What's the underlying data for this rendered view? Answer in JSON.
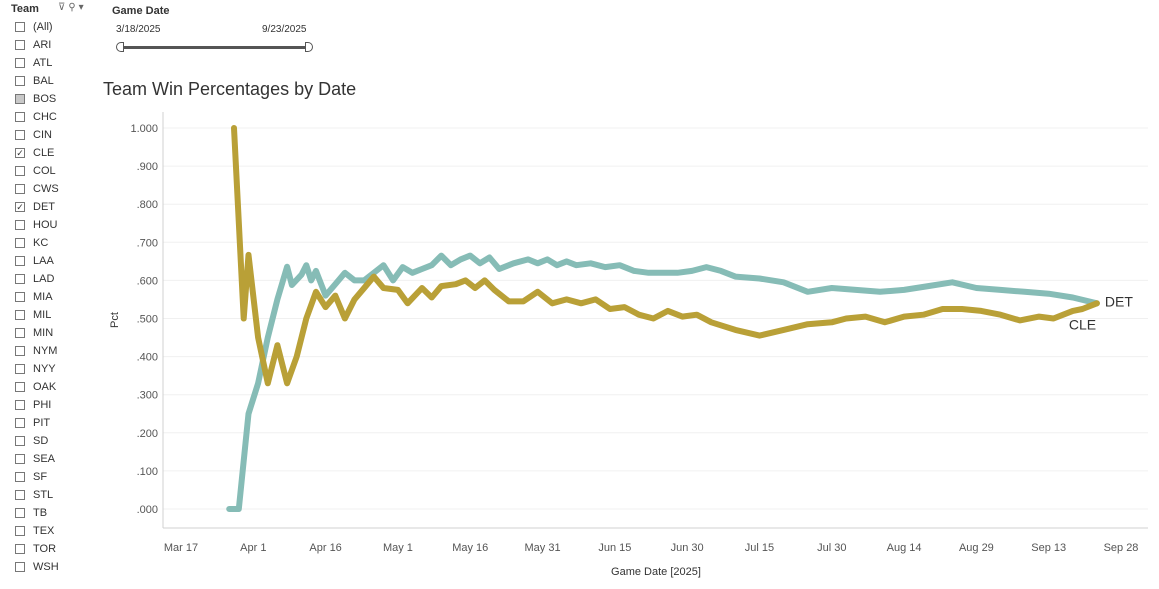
{
  "filter": {
    "title": "Team",
    "items": [
      {
        "label": "(All)",
        "state": "unchecked"
      },
      {
        "label": "ARI",
        "state": "unchecked"
      },
      {
        "label": "ATL",
        "state": "unchecked"
      },
      {
        "label": "BAL",
        "state": "unchecked"
      },
      {
        "label": "BOS",
        "state": "partial"
      },
      {
        "label": "CHC",
        "state": "unchecked"
      },
      {
        "label": "CIN",
        "state": "unchecked"
      },
      {
        "label": "CLE",
        "state": "checked"
      },
      {
        "label": "COL",
        "state": "unchecked"
      },
      {
        "label": "CWS",
        "state": "unchecked"
      },
      {
        "label": "DET",
        "state": "checked"
      },
      {
        "label": "HOU",
        "state": "unchecked"
      },
      {
        "label": "KC",
        "state": "unchecked"
      },
      {
        "label": "LAA",
        "state": "unchecked"
      },
      {
        "label": "LAD",
        "state": "unchecked"
      },
      {
        "label": "MIA",
        "state": "unchecked"
      },
      {
        "label": "MIL",
        "state": "unchecked"
      },
      {
        "label": "MIN",
        "state": "unchecked"
      },
      {
        "label": "NYM",
        "state": "unchecked"
      },
      {
        "label": "NYY",
        "state": "unchecked"
      },
      {
        "label": "OAK",
        "state": "unchecked"
      },
      {
        "label": "PHI",
        "state": "unchecked"
      },
      {
        "label": "PIT",
        "state": "unchecked"
      },
      {
        "label": "SD",
        "state": "unchecked"
      },
      {
        "label": "SEA",
        "state": "unchecked"
      },
      {
        "label": "SF",
        "state": "unchecked"
      },
      {
        "label": "STL",
        "state": "unchecked"
      },
      {
        "label": "TB",
        "state": "unchecked"
      },
      {
        "label": "TEX",
        "state": "unchecked"
      },
      {
        "label": "TOR",
        "state": "unchecked"
      },
      {
        "label": "WSH",
        "state": "unchecked"
      }
    ]
  },
  "date_filter": {
    "title": "Game Date",
    "start": "3/18/2025",
    "end": "9/23/2025"
  },
  "chart_data": {
    "type": "line",
    "title": "Team Win Percentages by Date",
    "xlabel": "Game Date [2025]",
    "ylabel": "Pct",
    "xlim": [
      "2025-03-14",
      "2025-09-30"
    ],
    "ylim": [
      0,
      1.05
    ],
    "x_ticks": [
      {
        "date": "2025-03-17",
        "label": "Mar 17"
      },
      {
        "date": "2025-04-01",
        "label": "Apr 1"
      },
      {
        "date": "2025-04-16",
        "label": "Apr 16"
      },
      {
        "date": "2025-05-01",
        "label": "May 1"
      },
      {
        "date": "2025-05-16",
        "label": "May 16"
      },
      {
        "date": "2025-05-31",
        "label": "May 31"
      },
      {
        "date": "2025-06-15",
        "label": "Jun 15"
      },
      {
        "date": "2025-06-30",
        "label": "Jun 30"
      },
      {
        "date": "2025-07-15",
        "label": "Jul 15"
      },
      {
        "date": "2025-07-30",
        "label": "Jul 30"
      },
      {
        "date": "2025-08-14",
        "label": "Aug 14"
      },
      {
        "date": "2025-08-29",
        "label": "Aug 29"
      },
      {
        "date": "2025-09-13",
        "label": "Sep 13"
      },
      {
        "date": "2025-09-28",
        "label": "Sep 28"
      }
    ],
    "y_ticks": [
      {
        "value": 0.0,
        "label": ".000"
      },
      {
        "value": 0.1,
        "label": ".100"
      },
      {
        "value": 0.2,
        "label": ".200"
      },
      {
        "value": 0.3,
        "label": ".300"
      },
      {
        "value": 0.4,
        "label": ".400"
      },
      {
        "value": 0.5,
        "label": ".500"
      },
      {
        "value": 0.6,
        "label": ".600"
      },
      {
        "value": 0.7,
        "label": ".700"
      },
      {
        "value": 0.8,
        "label": ".800"
      },
      {
        "value": 0.9,
        "label": ".900"
      },
      {
        "value": 1.0,
        "label": "1.000"
      }
    ],
    "grid": "horizontal",
    "series": [
      {
        "name": "DET",
        "color": "#86bcb6",
        "points": [
          [
            "2025-03-27",
            0.0
          ],
          [
            "2025-03-29",
            0.0
          ],
          [
            "2025-03-31",
            0.25
          ],
          [
            "2025-04-02",
            0.33
          ],
          [
            "2025-04-04",
            0.45
          ],
          [
            "2025-04-06",
            0.55
          ],
          [
            "2025-04-08",
            0.636
          ],
          [
            "2025-04-09",
            0.588
          ],
          [
            "2025-04-11",
            0.615
          ],
          [
            "2025-04-12",
            0.64
          ],
          [
            "2025-04-13",
            0.6
          ],
          [
            "2025-04-14",
            0.625
          ],
          [
            "2025-04-16",
            0.56
          ],
          [
            "2025-04-18",
            0.59
          ],
          [
            "2025-04-20",
            0.62
          ],
          [
            "2025-04-22",
            0.6
          ],
          [
            "2025-04-24",
            0.6
          ],
          [
            "2025-04-26",
            0.62
          ],
          [
            "2025-04-28",
            0.64
          ],
          [
            "2025-04-30",
            0.6
          ],
          [
            "2025-05-02",
            0.635
          ],
          [
            "2025-05-04",
            0.62
          ],
          [
            "2025-05-06",
            0.63
          ],
          [
            "2025-05-08",
            0.64
          ],
          [
            "2025-05-10",
            0.665
          ],
          [
            "2025-05-12",
            0.64
          ],
          [
            "2025-05-14",
            0.655
          ],
          [
            "2025-05-16",
            0.665
          ],
          [
            "2025-05-18",
            0.645
          ],
          [
            "2025-05-20",
            0.66
          ],
          [
            "2025-05-22",
            0.63
          ],
          [
            "2025-05-25",
            0.645
          ],
          [
            "2025-05-28",
            0.655
          ],
          [
            "2025-05-30",
            0.645
          ],
          [
            "2025-06-01",
            0.655
          ],
          [
            "2025-06-03",
            0.64
          ],
          [
            "2025-06-05",
            0.65
          ],
          [
            "2025-06-07",
            0.64
          ],
          [
            "2025-06-10",
            0.645
          ],
          [
            "2025-06-13",
            0.635
          ],
          [
            "2025-06-16",
            0.64
          ],
          [
            "2025-06-19",
            0.625
          ],
          [
            "2025-06-22",
            0.62
          ],
          [
            "2025-06-25",
            0.62
          ],
          [
            "2025-06-28",
            0.62
          ],
          [
            "2025-07-01",
            0.625
          ],
          [
            "2025-07-04",
            0.635
          ],
          [
            "2025-07-07",
            0.625
          ],
          [
            "2025-07-10",
            0.61
          ],
          [
            "2025-07-15",
            0.605
          ],
          [
            "2025-07-20",
            0.595
          ],
          [
            "2025-07-25",
            0.57
          ],
          [
            "2025-07-30",
            0.58
          ],
          [
            "2025-08-04",
            0.575
          ],
          [
            "2025-08-09",
            0.57
          ],
          [
            "2025-08-14",
            0.575
          ],
          [
            "2025-08-19",
            0.585
          ],
          [
            "2025-08-24",
            0.595
          ],
          [
            "2025-08-29",
            0.58
          ],
          [
            "2025-09-03",
            0.575
          ],
          [
            "2025-09-08",
            0.57
          ],
          [
            "2025-09-13",
            0.565
          ],
          [
            "2025-09-18",
            0.555
          ],
          [
            "2025-09-23",
            0.54
          ]
        ]
      },
      {
        "name": "CLE",
        "color": "#b9a037",
        "points": [
          [
            "2025-03-28",
            1.0
          ],
          [
            "2025-03-30",
            0.5
          ],
          [
            "2025-03-31",
            0.667
          ],
          [
            "2025-04-02",
            0.45
          ],
          [
            "2025-04-04",
            0.33
          ],
          [
            "2025-04-06",
            0.43
          ],
          [
            "2025-04-08",
            0.33
          ],
          [
            "2025-04-10",
            0.4
          ],
          [
            "2025-04-12",
            0.5
          ],
          [
            "2025-04-14",
            0.57
          ],
          [
            "2025-04-16",
            0.53
          ],
          [
            "2025-04-18",
            0.56
          ],
          [
            "2025-04-20",
            0.5
          ],
          [
            "2025-04-22",
            0.55
          ],
          [
            "2025-04-24",
            0.58
          ],
          [
            "2025-04-26",
            0.61
          ],
          [
            "2025-04-28",
            0.58
          ],
          [
            "2025-05-01",
            0.575
          ],
          [
            "2025-05-03",
            0.54
          ],
          [
            "2025-05-06",
            0.58
          ],
          [
            "2025-05-08",
            0.555
          ],
          [
            "2025-05-10",
            0.585
          ],
          [
            "2025-05-13",
            0.59
          ],
          [
            "2025-05-15",
            0.6
          ],
          [
            "2025-05-17",
            0.58
          ],
          [
            "2025-05-19",
            0.6
          ],
          [
            "2025-05-21",
            0.575
          ],
          [
            "2025-05-24",
            0.545
          ],
          [
            "2025-05-27",
            0.545
          ],
          [
            "2025-05-30",
            0.57
          ],
          [
            "2025-06-02",
            0.54
          ],
          [
            "2025-06-05",
            0.55
          ],
          [
            "2025-06-08",
            0.54
          ],
          [
            "2025-06-11",
            0.55
          ],
          [
            "2025-06-14",
            0.525
          ],
          [
            "2025-06-17",
            0.53
          ],
          [
            "2025-06-20",
            0.51
          ],
          [
            "2025-06-23",
            0.5
          ],
          [
            "2025-06-26",
            0.52
          ],
          [
            "2025-06-29",
            0.505
          ],
          [
            "2025-07-02",
            0.51
          ],
          [
            "2025-07-05",
            0.49
          ],
          [
            "2025-07-10",
            0.47
          ],
          [
            "2025-07-15",
            0.455
          ],
          [
            "2025-07-20",
            0.47
          ],
          [
            "2025-07-25",
            0.485
          ],
          [
            "2025-07-30",
            0.49
          ],
          [
            "2025-08-02",
            0.5
          ],
          [
            "2025-08-06",
            0.505
          ],
          [
            "2025-08-10",
            0.49
          ],
          [
            "2025-08-14",
            0.505
          ],
          [
            "2025-08-18",
            0.51
          ],
          [
            "2025-08-22",
            0.525
          ],
          [
            "2025-08-26",
            0.525
          ],
          [
            "2025-08-30",
            0.52
          ],
          [
            "2025-09-03",
            0.51
          ],
          [
            "2025-09-07",
            0.495
          ],
          [
            "2025-09-11",
            0.505
          ],
          [
            "2025-09-14",
            0.5
          ],
          [
            "2025-09-16",
            0.51
          ],
          [
            "2025-09-18",
            0.52
          ],
          [
            "2025-09-20",
            0.525
          ],
          [
            "2025-09-22",
            0.535
          ],
          [
            "2025-09-23",
            0.54
          ]
        ]
      }
    ]
  }
}
